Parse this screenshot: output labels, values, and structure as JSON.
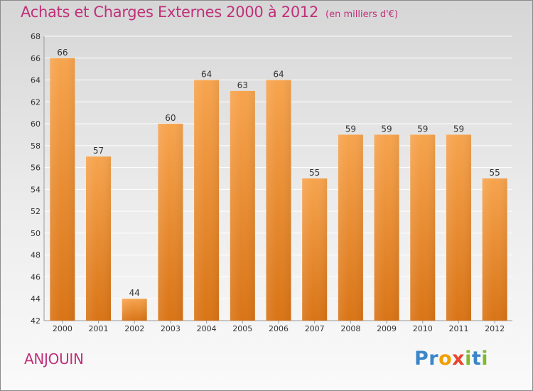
{
  "header": {
    "title": "Achats et Charges Externes 2000 à 2012",
    "unit": "(en milliers d'€)"
  },
  "footer": {
    "commune": "ANJOUIN",
    "logo": "Proxiti"
  },
  "colors": {
    "title": "#c0307a",
    "bar_top": "#f7a44e",
    "bar_bottom": "#d97416",
    "grid": "#ffffff"
  },
  "chart_data": {
    "type": "bar",
    "title": "Achats et Charges Externes 2000 à 2012",
    "subtitle": "(en milliers d'€)",
    "xlabel": "",
    "ylabel": "",
    "categories": [
      "2000",
      "2001",
      "2002",
      "2003",
      "2004",
      "2005",
      "2006",
      "2007",
      "2008",
      "2009",
      "2010",
      "2011",
      "2012"
    ],
    "values": [
      66,
      57,
      44,
      60,
      64,
      63,
      64,
      55,
      59,
      59,
      59,
      59,
      55
    ],
    "ylim": [
      42,
      68
    ],
    "yticks": [
      42,
      44,
      46,
      48,
      50,
      52,
      54,
      56,
      58,
      60,
      62,
      64,
      66,
      68
    ],
    "grid": true,
    "data_labels": true
  }
}
